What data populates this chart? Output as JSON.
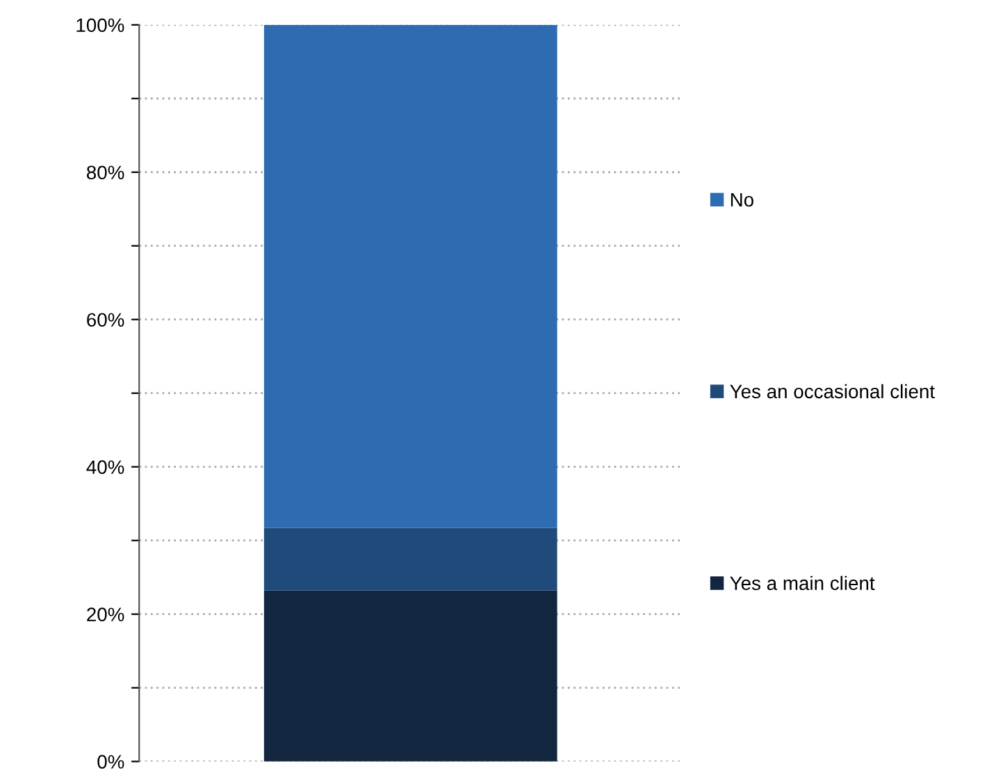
{
  "chart_data": {
    "type": "bar",
    "stacked": true,
    "categories": [
      null
    ],
    "series": [
      {
        "name": "Yes a main client",
        "color": "#12263f",
        "values": [
          23.2
        ]
      },
      {
        "name": "Yes an occasional client",
        "color": "#1f4a7a",
        "values": [
          8.5
        ]
      },
      {
        "name": "No",
        "color": "#2e6bb0",
        "values": [
          68.3
        ]
      }
    ],
    "ylim": [
      0,
      100
    ],
    "yticks": [
      {
        "value": 0,
        "label": "0%"
      },
      {
        "value": 10,
        "label": null
      },
      {
        "value": 20,
        "label": "20%"
      },
      {
        "value": 30,
        "label": null
      },
      {
        "value": 40,
        "label": "40%"
      },
      {
        "value": 50,
        "label": null
      },
      {
        "value": 60,
        "label": "60%"
      },
      {
        "value": 70,
        "label": null
      },
      {
        "value": 80,
        "label": "80%"
      },
      {
        "value": 90,
        "label": null
      },
      {
        "value": 100,
        "label": "100%"
      }
    ],
    "grid": "y",
    "legend": "right"
  }
}
